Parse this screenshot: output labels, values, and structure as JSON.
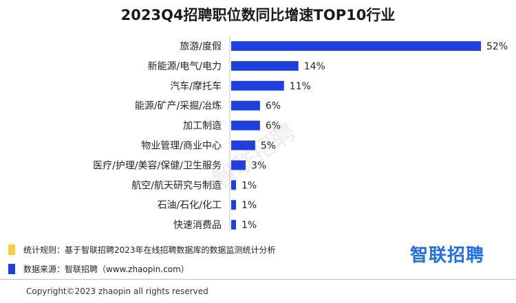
{
  "title": "2023Q4招聘职位数同比增速TOP10行业",
  "watermark": "智联招聘",
  "colors": {
    "bar": "#1f3fe0",
    "note_yellow": "#f7cd46",
    "note_blue": "#1f3fe0",
    "logo": "#1a6ef2"
  },
  "chart_data": {
    "type": "bar",
    "orientation": "horizontal",
    "categories": [
      "旅游/度假",
      "新能源/电气/电力",
      "汽车/摩托车",
      "能源/矿产/采掘/冶炼",
      "加工制造",
      "物业管理/商业中心",
      "医疗/护理/美容/保健/卫生服务",
      "航空/航天研究与制造",
      "石油/石化/化工",
      "快速消费品"
    ],
    "values": [
      52,
      14,
      11,
      6,
      6,
      5,
      3,
      1,
      1,
      1
    ],
    "value_labels": [
      "52%",
      "14%",
      "11%",
      "6%",
      "6%",
      "5%",
      "3%",
      "1%",
      "1%",
      "1%"
    ],
    "unit": "%",
    "xlim": [
      0,
      52
    ],
    "grid": false,
    "legend": "none"
  },
  "notes": {
    "method": "统计规则：基于智联招聘2023年在线招聘数据库的数据监测统计分析",
    "source": "数据来源：智联招聘（www.zhaopin.com）"
  },
  "logo_text": "智联招聘",
  "copyright": "Copyright©2023 zhaopin all rights reserved"
}
